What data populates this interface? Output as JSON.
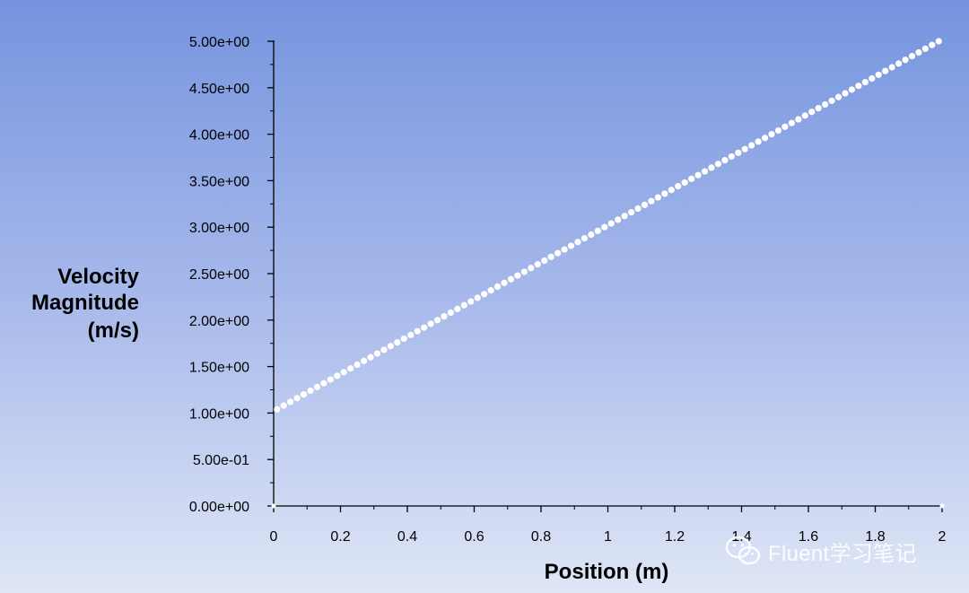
{
  "chart_data": {
    "type": "scatter",
    "xlabel": "Position (m)",
    "ylabel_lines": [
      "Velocity",
      "Magnitude",
      "(m/s)"
    ],
    "xlim": [
      0,
      2
    ],
    "ylim": [
      0,
      5
    ],
    "x_ticks": [
      "0",
      "0.2",
      "0.4",
      "0.6",
      "0.8",
      "1",
      "1.2",
      "1.4",
      "1.6",
      "1.8",
      "2"
    ],
    "y_ticks": [
      "0.00e+00",
      "5.00e-01",
      "1.00e+00",
      "1.50e+00",
      "2.00e+00",
      "2.50e+00",
      "3.00e+00",
      "3.50e+00",
      "4.00e+00",
      "4.50e+00",
      "5.00e+00"
    ],
    "series": [
      {
        "marker_color": "#ffffff",
        "x": [
          0.01,
          0.03,
          0.05,
          0.07,
          0.09,
          0.11,
          0.13,
          0.15,
          0.17,
          0.19,
          0.21,
          0.23,
          0.25,
          0.27,
          0.29,
          0.31,
          0.33,
          0.35,
          0.37,
          0.39,
          0.41,
          0.43,
          0.45,
          0.47,
          0.49,
          0.51,
          0.53,
          0.55,
          0.57,
          0.59,
          0.61,
          0.63,
          0.65,
          0.67,
          0.69,
          0.71,
          0.73,
          0.75,
          0.77,
          0.79,
          0.81,
          0.83,
          0.85,
          0.87,
          0.89,
          0.91,
          0.93,
          0.95,
          0.97,
          0.99,
          1.01,
          1.03,
          1.05,
          1.07,
          1.09,
          1.11,
          1.13,
          1.15,
          1.17,
          1.19,
          1.21,
          1.23,
          1.25,
          1.27,
          1.29,
          1.31,
          1.33,
          1.35,
          1.37,
          1.39,
          1.41,
          1.43,
          1.45,
          1.47,
          1.49,
          1.51,
          1.53,
          1.55,
          1.57,
          1.59,
          1.61,
          1.63,
          1.65,
          1.67,
          1.69,
          1.71,
          1.73,
          1.75,
          1.77,
          1.79,
          1.81,
          1.83,
          1.85,
          1.87,
          1.89,
          1.91,
          1.93,
          1.95,
          1.97,
          1.99
        ],
        "y": [
          1.04,
          1.08,
          1.12,
          1.16,
          1.2,
          1.24,
          1.28,
          1.32,
          1.36,
          1.4,
          1.44,
          1.48,
          1.52,
          1.56,
          1.6,
          1.64,
          1.68,
          1.72,
          1.76,
          1.8,
          1.84,
          1.88,
          1.92,
          1.96,
          2.0,
          2.04,
          2.08,
          2.12,
          2.16,
          2.2,
          2.24,
          2.28,
          2.32,
          2.36,
          2.4,
          2.44,
          2.48,
          2.52,
          2.56,
          2.6,
          2.64,
          2.68,
          2.72,
          2.76,
          2.8,
          2.84,
          2.88,
          2.92,
          2.96,
          3.0,
          3.04,
          3.08,
          3.12,
          3.16,
          3.2,
          3.24,
          3.28,
          3.32,
          3.36,
          3.4,
          3.44,
          3.48,
          3.52,
          3.56,
          3.6,
          3.64,
          3.68,
          3.72,
          3.76,
          3.8,
          3.84,
          3.88,
          3.92,
          3.96,
          4.0,
          4.04,
          4.08,
          4.12,
          4.16,
          4.2,
          4.24,
          4.28,
          4.32,
          4.36,
          4.4,
          4.44,
          4.48,
          4.52,
          4.56,
          4.6,
          4.64,
          4.68,
          4.72,
          4.76,
          4.8,
          4.84,
          4.88,
          4.92,
          4.96,
          5.0
        ]
      }
    ],
    "grid": false
  },
  "watermark": {
    "icon": "wechat-icon",
    "text": "Fluent学习笔记"
  },
  "colors": {
    "background_top": "#7594de",
    "background_bottom": "#dfe6f6",
    "axis": "#000000",
    "marker": "#ffffff"
  }
}
